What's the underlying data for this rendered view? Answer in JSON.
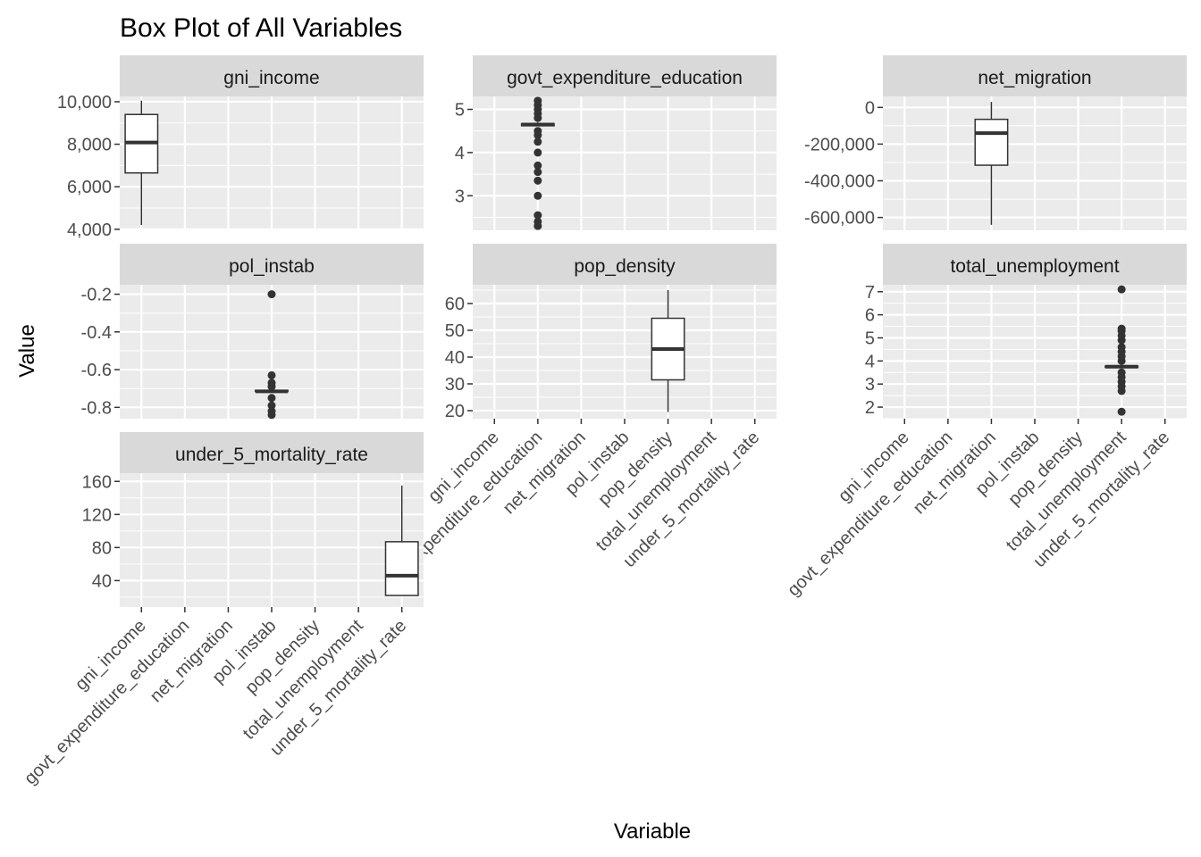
{
  "chart_data": {
    "type": "box",
    "title": "Box Plot of All Variables",
    "xlabel": "Variable",
    "ylabel": "Value",
    "categories": [
      "gni_income",
      "govt_expenditure_education",
      "net_migration",
      "pol_instab",
      "pop_density",
      "total_unemployment",
      "under_5_mortality_rate"
    ],
    "facets": [
      {
        "name": "gni_income",
        "ylim": [
          3950,
          10250
        ],
        "y_ticks": [
          4000,
          6000,
          8000,
          10000
        ],
        "y_tick_labels": [
          "4,000",
          "6,000",
          "8,000",
          "10,000"
        ],
        "box": {
          "category": "gni_income",
          "min": 4200,
          "q1": 6650,
          "median": 8080,
          "q3": 9400,
          "max": 10050,
          "outliers": []
        }
      },
      {
        "name": "govt_expenditure_education",
        "ylim": [
          2.2,
          5.3
        ],
        "y_ticks": [
          3,
          4,
          5
        ],
        "y_tick_labels": [
          "3",
          "4",
          "5"
        ],
        "box": {
          "category": "govt_expenditure_education",
          "min": 4.62,
          "q1": 4.62,
          "median": 4.65,
          "q3": 4.67,
          "max": 4.7,
          "outliers": [
            2.3,
            2.4,
            2.55,
            3.0,
            3.35,
            3.55,
            3.7,
            4.0,
            4.25,
            4.4,
            4.5,
            4.8,
            4.9,
            5.0,
            5.1,
            5.2
          ]
        }
      },
      {
        "name": "net_migration",
        "ylim": [
          -670000,
          60000
        ],
        "y_ticks": [
          -600000,
          -400000,
          -200000,
          0
        ],
        "y_tick_labels": [
          "-600,000",
          "-400,000",
          "-200,000",
          "0"
        ],
        "box": {
          "category": "net_migration",
          "min": -640000,
          "q1": -315000,
          "median": -140000,
          "q3": -65000,
          "max": 30000,
          "outliers": []
        }
      },
      {
        "name": "pol_instab",
        "ylim": [
          -0.86,
          -0.15
        ],
        "y_ticks": [
          -0.8,
          -0.6,
          -0.4,
          -0.2
        ],
        "y_tick_labels": [
          "-0.8",
          "-0.6",
          "-0.4",
          "-0.2"
        ],
        "box": {
          "category": "pol_instab",
          "min": -0.715,
          "q1": -0.715,
          "median": -0.715,
          "q3": -0.71,
          "max": -0.71,
          "outliers": [
            -0.2,
            -0.63,
            -0.67,
            -0.69,
            -0.75,
            -0.79,
            -0.82,
            -0.84
          ]
        }
      },
      {
        "name": "pop_density",
        "ylim": [
          17,
          67
        ],
        "y_ticks": [
          20,
          30,
          40,
          50,
          60
        ],
        "y_tick_labels": [
          "20",
          "30",
          "40",
          "50",
          "60"
        ],
        "box": {
          "category": "pop_density",
          "min": 19.5,
          "q1": 31.5,
          "median": 43,
          "q3": 54.5,
          "max": 65,
          "outliers": []
        }
      },
      {
        "name": "total_unemployment",
        "ylim": [
          1.5,
          7.3
        ],
        "y_ticks": [
          2,
          3,
          4,
          5,
          6,
          7
        ],
        "y_tick_labels": [
          "2",
          "3",
          "4",
          "5",
          "6",
          "7"
        ],
        "box": {
          "category": "total_unemployment",
          "min": 3.72,
          "q1": 3.72,
          "median": 3.75,
          "q3": 3.78,
          "max": 3.8,
          "outliers": [
            1.8,
            2.7,
            2.9,
            3.1,
            3.3,
            3.5,
            4.0,
            4.2,
            4.4,
            4.6,
            4.9,
            5.1,
            5.3,
            5.4,
            7.1
          ]
        }
      },
      {
        "name": "under_5_mortality_rate",
        "ylim": [
          8,
          170
        ],
        "y_ticks": [
          40,
          80,
          120,
          160
        ],
        "y_tick_labels": [
          "40",
          "80",
          "120",
          "160"
        ],
        "box": {
          "category": "under_5_mortality_rate",
          "min": 22,
          "q1": 22,
          "median": 46,
          "q3": 87,
          "max": 155,
          "outliers": []
        }
      }
    ],
    "grid": true,
    "legend": "none",
    "colors": {
      "panel_bg": "#ebebeb",
      "strip_bg": "#d9d9d9",
      "grid": "#ffffff",
      "box_line": "#333333",
      "text": "#000000",
      "tick_text": "#4d4d4d"
    }
  }
}
